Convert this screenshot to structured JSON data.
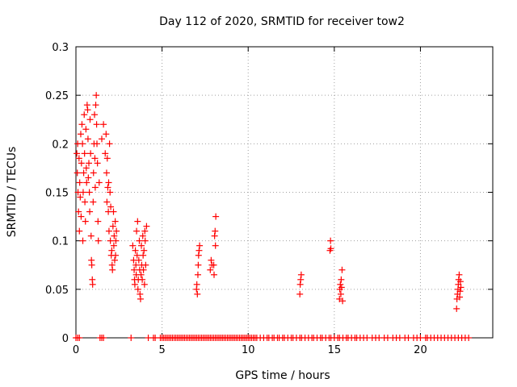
{
  "chart_data": {
    "type": "scatter",
    "title": "Day 112 of 2020, SRMTID for receiver tow2",
    "xlabel": "GPS time / hours",
    "ylabel": "SRMTID / TECUs",
    "xlim": [
      0,
      24.2
    ],
    "ylim": [
      0,
      0.3
    ],
    "xticks": [
      0,
      5,
      10,
      15,
      20
    ],
    "xtick_labels": [
      "0",
      "5",
      "10",
      "15",
      "20"
    ],
    "yticks": [
      0,
      0.05,
      0.1,
      0.15,
      0.2,
      0.25,
      0.3
    ],
    "ytick_labels": [
      "0",
      "0.05",
      "0.1",
      "0.15",
      "0.2",
      "0.25",
      "0.3"
    ],
    "grid": true,
    "marker": "plus",
    "color": "#ff0000",
    "series": [
      {
        "name": "SRMTID",
        "points": [
          [
            0.05,
            0.19
          ],
          [
            0.08,
            0.17
          ],
          [
            0.1,
            0.2
          ],
          [
            0.12,
            0.15
          ],
          [
            0.15,
            0.13
          ],
          [
            0.18,
            0.185
          ],
          [
            0.2,
            0.11
          ],
          [
            0.22,
            0.16
          ],
          [
            0.25,
            0.145
          ],
          [
            0.28,
            0.21
          ],
          [
            0.3,
            0.125
          ],
          [
            0.32,
            0.18
          ],
          [
            0.35,
            0.22
          ],
          [
            0.38,
            0.2
          ],
          [
            0.4,
            0.1
          ],
          [
            0.42,
            0.15
          ],
          [
            0.45,
            0.17
          ],
          [
            0.48,
            0.23
          ],
          [
            0.5,
            0.19
          ],
          [
            0.52,
            0.14
          ],
          [
            0.55,
            0.12
          ],
          [
            0.58,
            0.215
          ],
          [
            0.6,
            0.175
          ],
          [
            0.62,
            0.16
          ],
          [
            0.65,
            0.24
          ],
          [
            0.68,
            0.235
          ],
          [
            0.7,
            0.205
          ],
          [
            0.72,
            0.165
          ],
          [
            0.75,
            0.18
          ],
          [
            0.78,
            0.15
          ],
          [
            0.8,
            0.13
          ],
          [
            0.82,
            0.225
          ],
          [
            0.85,
            0.19
          ],
          [
            0.88,
            0.105
          ],
          [
            0.9,
            0.08
          ],
          [
            0.92,
            0.075
          ],
          [
            0.95,
            0.06
          ],
          [
            0.97,
            0.055
          ],
          [
            1.0,
            0.14
          ],
          [
            1.02,
            0.17
          ],
          [
            1.05,
            0.2
          ],
          [
            1.08,
            0.23
          ],
          [
            1.1,
            0.185
          ],
          [
            1.12,
            0.155
          ],
          [
            1.15,
            0.24
          ],
          [
            1.18,
            0.25
          ],
          [
            1.2,
            0.22
          ],
          [
            1.22,
            0.2
          ],
          [
            1.25,
            0.18
          ],
          [
            1.28,
            0.12
          ],
          [
            1.3,
            0.1
          ],
          [
            1.35,
            0.16
          ],
          [
            1.5,
            0.205
          ],
          [
            1.6,
            0.22
          ],
          [
            1.7,
            0.19
          ],
          [
            1.75,
            0.21
          ],
          [
            1.78,
            0.17
          ],
          [
            1.8,
            0.14
          ],
          [
            1.82,
            0.185
          ],
          [
            1.85,
            0.155
          ],
          [
            1.88,
            0.13
          ],
          [
            1.9,
            0.16
          ],
          [
            1.92,
            0.11
          ],
          [
            1.95,
            0.2
          ],
          [
            1.98,
            0.15
          ],
          [
            2.0,
            0.1
          ],
          [
            2.02,
            0.135
          ],
          [
            2.05,
            0.085
          ],
          [
            2.08,
            0.09
          ],
          [
            2.1,
            0.075
          ],
          [
            2.12,
            0.07
          ],
          [
            2.15,
            0.115
          ],
          [
            2.18,
            0.13
          ],
          [
            2.2,
            0.095
          ],
          [
            2.22,
            0.105
          ],
          [
            2.25,
            0.08
          ],
          [
            2.28,
            0.12
          ],
          [
            2.3,
            0.085
          ],
          [
            2.32,
            0.1
          ],
          [
            2.35,
            0.11
          ],
          [
            3.3,
            0.095
          ],
          [
            3.35,
            0.08
          ],
          [
            3.38,
            0.07
          ],
          [
            3.4,
            0.06
          ],
          [
            3.42,
            0.055
          ],
          [
            3.45,
            0.09
          ],
          [
            3.48,
            0.075
          ],
          [
            3.5,
            0.065
          ],
          [
            3.52,
            0.11
          ],
          [
            3.55,
            0.085
          ],
          [
            3.58,
            0.12
          ],
          [
            3.6,
            0.05
          ],
          [
            3.62,
            0.06
          ],
          [
            3.65,
            0.08
          ],
          [
            3.68,
            0.1
          ],
          [
            3.7,
            0.07
          ],
          [
            3.72,
            0.045
          ],
          [
            3.75,
            0.04
          ],
          [
            3.78,
            0.065
          ],
          [
            3.8,
            0.095
          ],
          [
            3.82,
            0.075
          ],
          [
            3.85,
            0.06
          ],
          [
            3.88,
            0.105
          ],
          [
            3.9,
            0.085
          ],
          [
            3.92,
            0.07
          ],
          [
            3.95,
            0.09
          ],
          [
            3.98,
            0.055
          ],
          [
            4.0,
            0.11
          ],
          [
            4.02,
            0.1
          ],
          [
            4.05,
            0.075
          ],
          [
            4.1,
            0.115
          ],
          [
            7.0,
            0.05
          ],
          [
            7.02,
            0.055
          ],
          [
            7.05,
            0.045
          ],
          [
            7.08,
            0.065
          ],
          [
            7.1,
            0.075
          ],
          [
            7.12,
            0.085
          ],
          [
            7.15,
            0.09
          ],
          [
            7.18,
            0.095
          ],
          [
            7.8,
            0.07
          ],
          [
            7.85,
            0.08
          ],
          [
            7.9,
            0.075
          ],
          [
            8.0,
            0.075
          ],
          [
            8.02,
            0.065
          ],
          [
            8.05,
            0.105
          ],
          [
            8.08,
            0.11
          ],
          [
            8.1,
            0.095
          ],
          [
            8.12,
            0.125
          ],
          [
            13.0,
            0.045
          ],
          [
            13.02,
            0.055
          ],
          [
            13.05,
            0.06
          ],
          [
            13.08,
            0.065
          ],
          [
            14.75,
            0.09
          ],
          [
            14.78,
            0.1
          ],
          [
            14.8,
            0.092
          ],
          [
            15.3,
            0.04
          ],
          [
            15.32,
            0.05
          ],
          [
            15.35,
            0.055
          ],
          [
            15.38,
            0.045
          ],
          [
            15.4,
            0.06
          ],
          [
            15.42,
            0.052
          ],
          [
            15.45,
            0.07
          ],
          [
            15.48,
            0.038
          ],
          [
            22.1,
            0.03
          ],
          [
            22.12,
            0.04
          ],
          [
            22.15,
            0.045
          ],
          [
            22.18,
            0.05
          ],
          [
            22.2,
            0.055
          ],
          [
            22.22,
            0.06
          ],
          [
            22.25,
            0.065
          ],
          [
            22.28,
            0.042
          ],
          [
            22.3,
            0.048
          ],
          [
            22.32,
            0.058
          ],
          [
            22.35,
            0.052
          ]
        ],
        "zero_x": [
          0.0,
          0.1,
          0.2,
          1.4,
          1.5,
          1.6,
          3.2,
          4.2,
          4.5,
          4.6,
          4.9,
          5.0,
          5.1,
          5.2,
          5.3,
          5.4,
          5.5,
          5.6,
          5.7,
          5.8,
          5.9,
          6.0,
          6.1,
          6.2,
          6.3,
          6.4,
          6.5,
          6.6,
          6.7,
          6.8,
          6.9,
          7.0,
          7.1,
          7.2,
          7.3,
          7.4,
          7.5,
          7.6,
          7.7,
          7.8,
          7.9,
          8.0,
          8.1,
          8.2,
          8.3,
          8.4,
          8.5,
          8.6,
          8.7,
          8.8,
          8.9,
          9.0,
          9.1,
          9.2,
          9.3,
          9.4,
          9.5,
          9.6,
          9.7,
          9.8,
          9.9,
          10.0,
          10.1,
          10.2,
          10.3,
          10.4,
          10.5,
          10.7,
          10.9,
          11.1,
          11.2,
          11.4,
          11.5,
          11.7,
          11.8,
          12.0,
          12.1,
          12.3,
          12.5,
          12.6,
          12.8,
          13.0,
          13.1,
          13.3,
          13.5,
          13.7,
          13.8,
          14.0,
          14.2,
          14.3,
          14.5,
          14.7,
          14.8,
          15.0,
          15.2,
          15.3,
          15.5,
          15.7,
          15.8,
          16.0,
          16.2,
          16.3,
          16.5,
          16.7,
          16.9,
          17.2,
          17.4,
          17.6,
          17.9,
          18.1,
          18.4,
          18.6,
          18.8,
          19.1,
          19.3,
          19.6,
          19.8,
          20.0,
          20.3,
          20.4,
          20.6,
          20.8,
          21.0,
          21.2,
          21.4,
          21.6,
          21.8,
          22.0,
          22.2,
          22.4,
          22.6,
          22.8
        ]
      }
    ]
  }
}
